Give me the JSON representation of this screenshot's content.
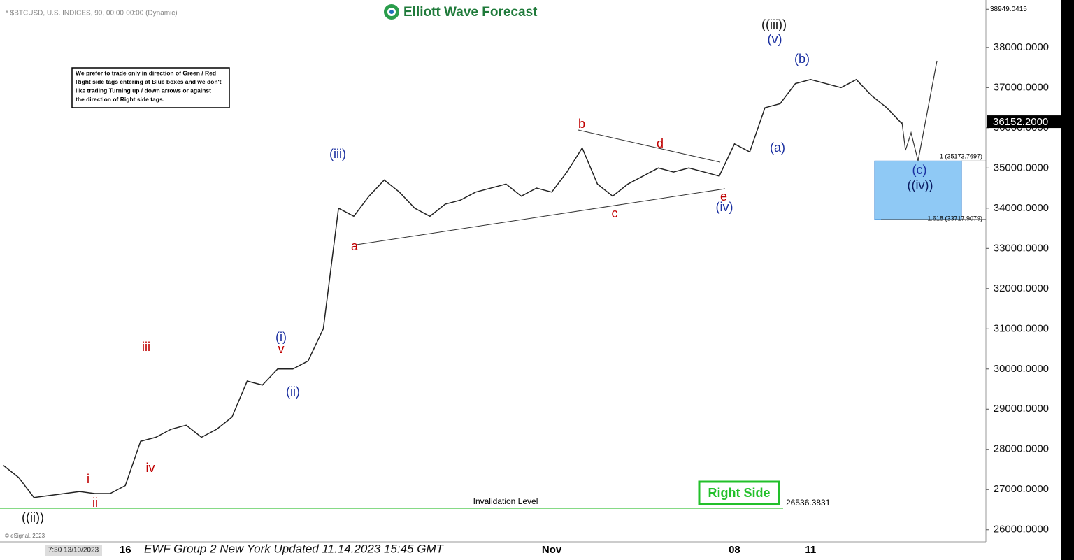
{
  "chart_data": {
    "type": "line",
    "symbol": "* $BTCUSD, U.S. INDICES, 90, 00:00-00:00 (Dynamic)",
    "brand": "Elliott Wave Forecast",
    "note_lines": [
      "We prefer to trade only in direction of Green / Red",
      "Right side tags entering at Blue boxes and we don't",
      "like trading Turning up / down arrows or against",
      "the direction of Right side tags."
    ],
    "categories": [
      null,
      null,
      null,
      null,
      null,
      null,
      null,
      null,
      "16",
      null,
      null,
      null,
      null,
      null,
      null,
      null,
      null,
      null,
      null,
      null,
      null,
      null,
      null,
      null,
      null,
      null,
      null,
      null,
      null,
      null,
      null,
      null,
      null,
      null,
      null,
      null,
      "Nov",
      null,
      null,
      null,
      null,
      null,
      null,
      null,
      null,
      null,
      null,
      null,
      "08",
      null,
      null,
      null,
      null,
      "11",
      null,
      null,
      null,
      null,
      null,
      null
    ],
    "values": [
      27600,
      27300,
      26800,
      26850,
      26900,
      26950,
      26900,
      26900,
      27100,
      28200,
      28300,
      28500,
      28600,
      28300,
      28500,
      28800,
      29700,
      29600,
      30000,
      30000,
      30200,
      31000,
      34000,
      33800,
      34300,
      34700,
      34400,
      34000,
      33800,
      34100,
      34200,
      34400,
      34500,
      34600,
      34300,
      34500,
      34400,
      34900,
      35500,
      34600,
      34300,
      34600,
      34800,
      35000,
      34900,
      35000,
      34900,
      34800,
      35600,
      35400,
      36500,
      36600,
      37100,
      37200,
      37100,
      37000,
      37200,
      36800,
      36500,
      36100
    ],
    "color": "#222222",
    "ylim": [
      25700,
      39180
    ],
    "yticks": [
      {
        "value": 26000,
        "label": "26000.0000"
      },
      {
        "value": 27000,
        "label": "27000.0000"
      },
      {
        "value": 28000,
        "label": "28000.0000"
      },
      {
        "value": 29000,
        "label": "29000.0000"
      },
      {
        "value": 30000,
        "label": "30000.0000"
      },
      {
        "value": 31000,
        "label": "31000.0000"
      },
      {
        "value": 32000,
        "label": "32000.0000"
      },
      {
        "value": 33000,
        "label": "33000.0000"
      },
      {
        "value": 34000,
        "label": "34000.0000"
      },
      {
        "value": 35000,
        "label": "35000.0000"
      },
      {
        "value": 36000,
        "label": "36000.0000"
      },
      {
        "value": 37000,
        "label": "37000.0000"
      },
      {
        "value": 38000,
        "label": "38000.0000"
      }
    ],
    "top_price": {
      "value": 38949.0415,
      "label": "38949.0415"
    },
    "last_price": {
      "value": 36152.2,
      "label": "36152.2000"
    },
    "box_top": {
      "value": 35173.7697,
      "label": "1 (35173.7697)"
    },
    "box_bottom": {
      "value": 33717.9079,
      "label": "1.618 (33717.9079)"
    },
    "invalidation": {
      "value": 26536.3831,
      "label": "26536.3831",
      "text": "Invalidation Level"
    },
    "wave_labels": [
      "((ii))",
      "i",
      "ii",
      "iii",
      "iv",
      "v",
      "(i)",
      "(ii)",
      "(iii)",
      "a",
      "b",
      "c",
      "d",
      "e",
      "(iv)",
      "((iii))",
      "(v)",
      "(b)",
      "(a)",
      "(c)",
      "((iv))"
    ],
    "right_side": "Right Side",
    "footer": "EWF Group 2 New York Updated 11.14.2023 15:45 GMT",
    "start_time": "7:30 13/10/2023",
    "copyright": "© eSignal, 2023"
  }
}
